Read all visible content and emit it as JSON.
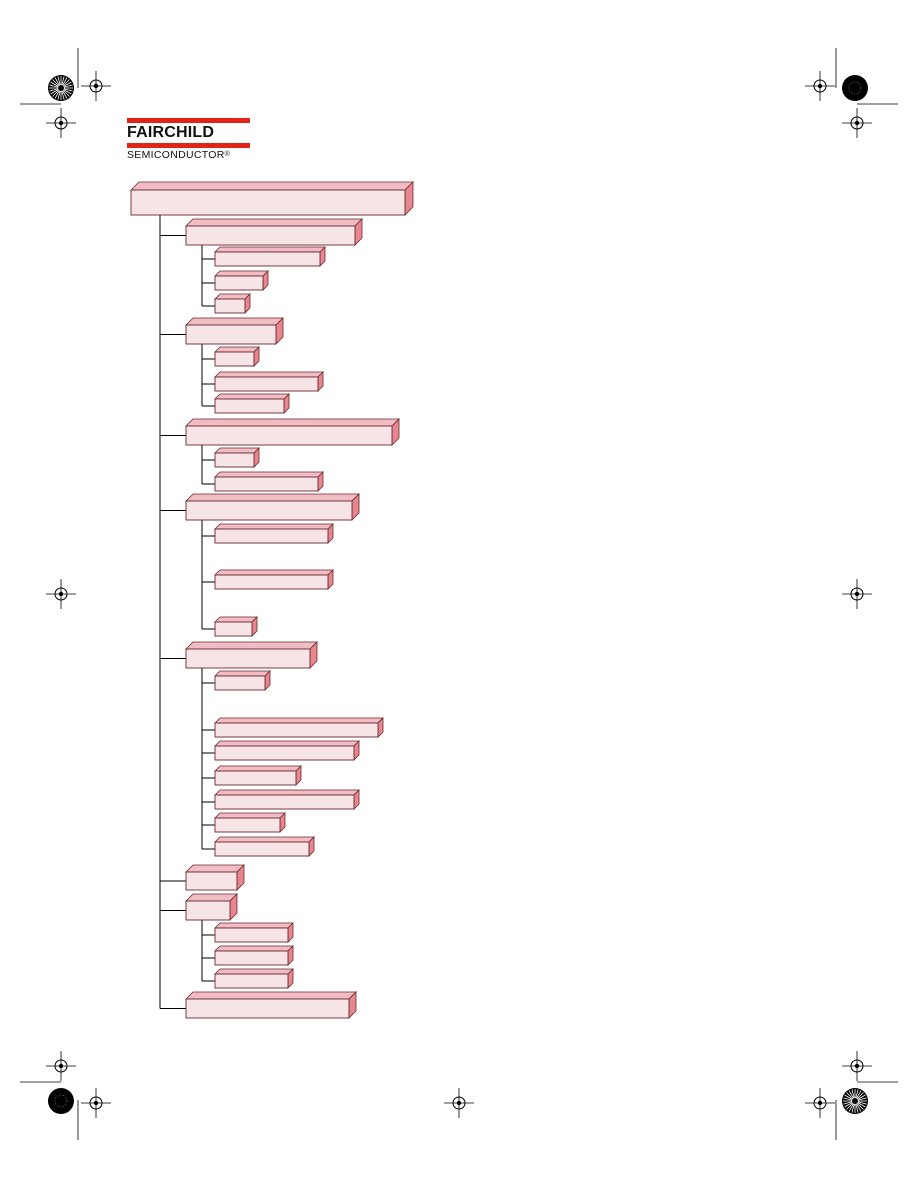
{
  "brand": {
    "name": "FAIRCHILD",
    "subtitle": "SEMICONDUCTOR",
    "mark": "®",
    "accent_color": "#e2231a"
  },
  "colors": {
    "box_front": "#f6e4e6",
    "box_top": "#f1bcc3",
    "box_side": "#e8868f",
    "stroke": "#6b2a30",
    "connector": "#000000"
  },
  "icons": {
    "registration_mark": "crosshair-registration-icon",
    "starburst_target": "starburst-registration-icon",
    "solid_dot_target": "black-dot-registration-icon"
  },
  "tree": {
    "root": {
      "label": ""
    },
    "sections": [
      {
        "label": "",
        "children": [
          "",
          "",
          ""
        ]
      },
      {
        "label": "",
        "children": [
          "",
          "",
          ""
        ]
      },
      {
        "label": "",
        "children": [
          "",
          ""
        ]
      },
      {
        "label": "",
        "children": [
          "",
          "",
          ""
        ]
      },
      {
        "label": "",
        "children": [
          "",
          "",
          "",
          "",
          "",
          "",
          ""
        ]
      },
      {
        "label": "",
        "children": []
      },
      {
        "label": "",
        "children": [
          "",
          "",
          ""
        ]
      },
      {
        "label": "",
        "children": []
      }
    ]
  }
}
